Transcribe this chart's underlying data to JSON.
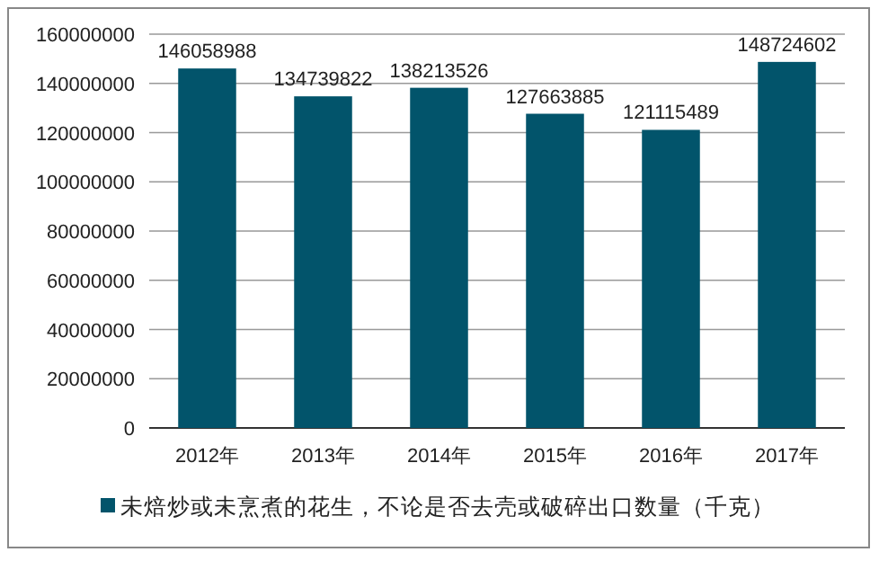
{
  "chart_data": {
    "type": "bar",
    "categories": [
      "2012年",
      "2013年",
      "2014年",
      "2015年",
      "2016年",
      "2017年"
    ],
    "series": [
      {
        "name": "未焙炒或未烹煮的花生，不论是否去壳或破碎出口数量（千克）",
        "color": "#02546b",
        "values": [
          146058988,
          134739822,
          138213526,
          127663885,
          121115489,
          148724602
        ]
      }
    ],
    "ylim": [
      0,
      160000000
    ],
    "yticks": [
      0,
      20000000,
      40000000,
      60000000,
      80000000,
      100000000,
      120000000,
      140000000,
      160000000
    ],
    "grid": "y",
    "legend": "bottom",
    "data_labels": true
  }
}
